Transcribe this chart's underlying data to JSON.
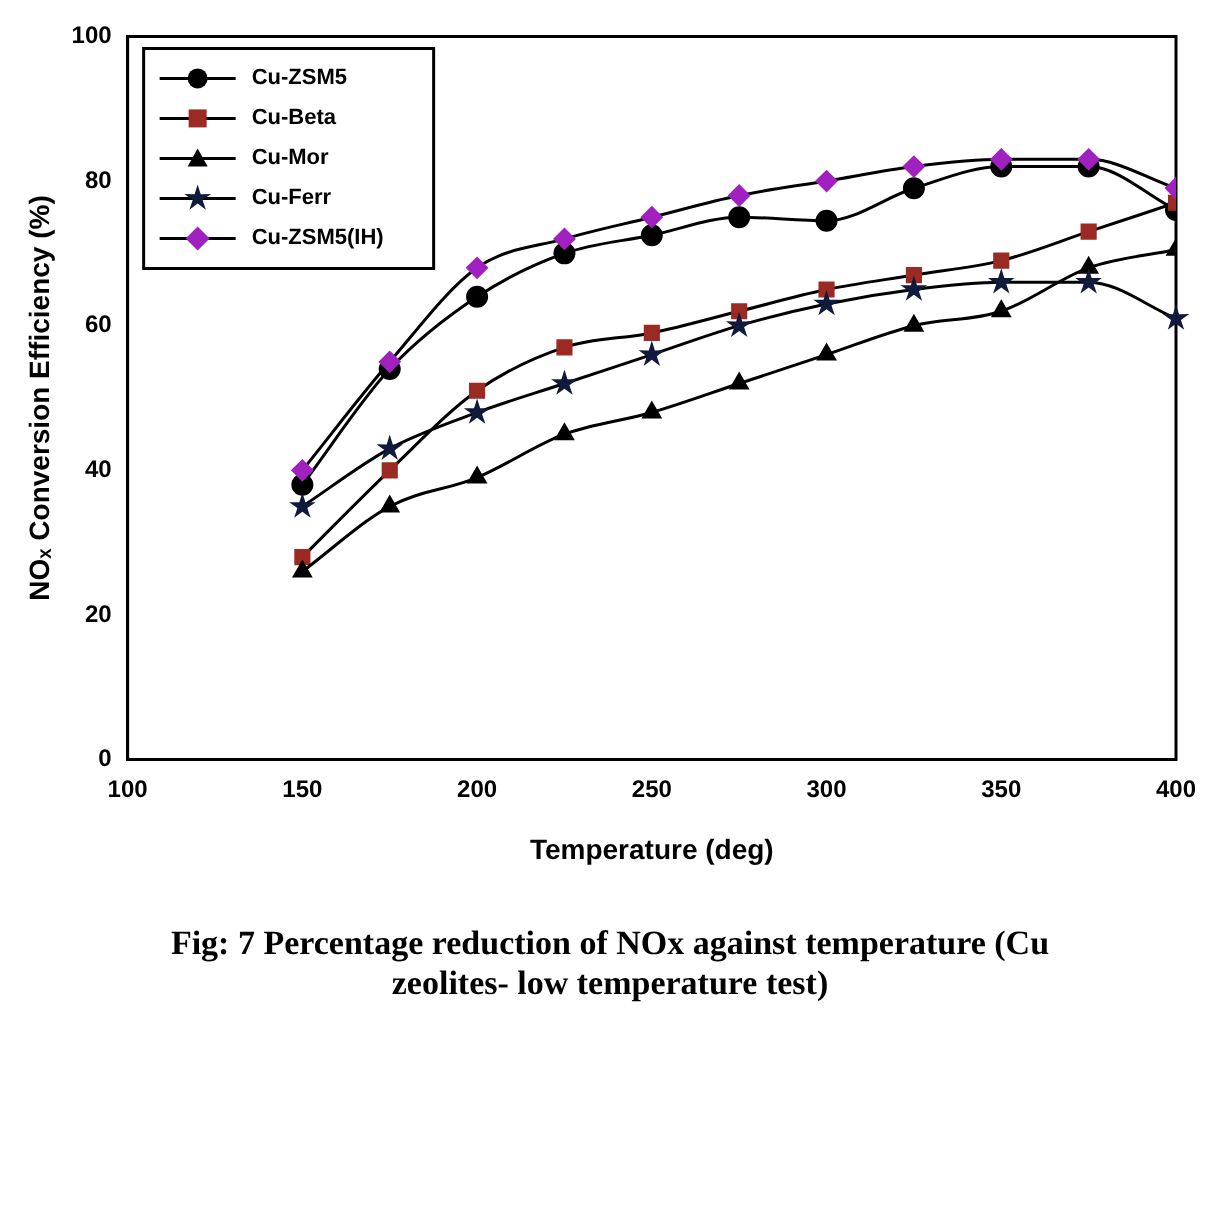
{
  "chart_data": {
    "type": "line",
    "xlabel": "Temperature (deg)",
    "ylabel": "NOₓ Conversion Efficiency (%)",
    "x": [
      150,
      175,
      200,
      225,
      250,
      275,
      300,
      325,
      350,
      375,
      400
    ],
    "xlim": [
      100,
      400
    ],
    "xticks": [
      100,
      150,
      200,
      250,
      300,
      350,
      400
    ],
    "ylim": [
      0,
      100
    ],
    "yticks": [
      0,
      20,
      40,
      60,
      80,
      100
    ],
    "grid": false,
    "legend": "top left",
    "line_style": "solid",
    "annotations": [
      "Fig: 7 Percentage reduction of NOx against temperature (Cu zeolites- low temperature test)"
    ],
    "series": [
      {
        "name": "Cu-ZSM5",
        "color": "#000000",
        "marker": "circle",
        "values": [
          38,
          54,
          64,
          70,
          72.5,
          75,
          74.5,
          79,
          82,
          82,
          76
        ]
      },
      {
        "name": "Cu-Beta",
        "color": "#9b2a22",
        "marker": "square",
        "values": [
          28,
          40,
          51,
          57,
          59,
          62,
          65,
          67,
          69,
          73,
          77
        ]
      },
      {
        "name": "Cu-Mor",
        "color": "#000000",
        "marker": "triangle",
        "values": [
          26,
          35,
          39,
          45,
          48,
          52,
          56,
          60,
          62,
          68,
          70.5
        ]
      },
      {
        "name": "Cu-Ferr",
        "color": "#0f1a3c",
        "marker": "star",
        "values": [
          35,
          43,
          48,
          52,
          56,
          60,
          63,
          65,
          66,
          66,
          61
        ]
      },
      {
        "name": "Cu-ZSM5(IH)",
        "color": "#a020c0",
        "marker": "diamond",
        "values": [
          40,
          55,
          68,
          72,
          75,
          78,
          80,
          82,
          83,
          83,
          79
        ]
      }
    ]
  }
}
